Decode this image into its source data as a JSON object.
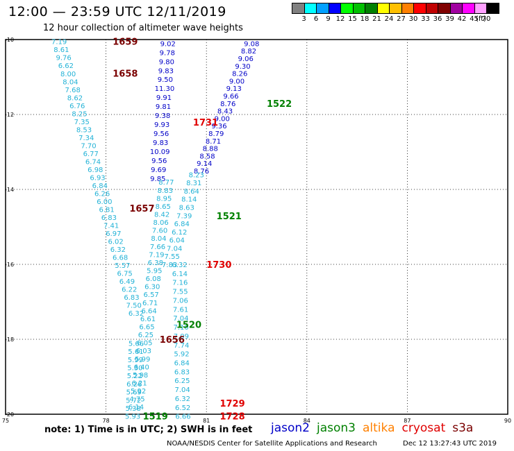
{
  "title": "12:00 — 23:59 UTC 12/11/2019",
  "subtitle": "12 hour collection of altimeter wave heights",
  "legend": {
    "unit_label": "(ft)",
    "items": [
      {
        "label": "3",
        "color": "#808080"
      },
      {
        "label": "6",
        "color": "#00ffff"
      },
      {
        "label": "9",
        "color": "#00a0ff"
      },
      {
        "label": "12",
        "color": "#0000ff"
      },
      {
        "label": "15",
        "color": "#00ff00"
      },
      {
        "label": "18",
        "color": "#00c000"
      },
      {
        "label": "21",
        "color": "#008000"
      },
      {
        "label": "24",
        "color": "#ffff00"
      },
      {
        "label": "27",
        "color": "#ffc000"
      },
      {
        "label": "30",
        "color": "#ff8000"
      },
      {
        "label": "33",
        "color": "#ff0000"
      },
      {
        "label": "36",
        "color": "#c00000"
      },
      {
        "label": "39",
        "color": "#800000"
      },
      {
        "label": "42",
        "color": "#a000a0"
      },
      {
        "label": "45",
        "color": "#ff00ff"
      },
      {
        "label": "70",
        "color": "#ffa0ff"
      },
      {
        "label": "",
        "color": "#000000"
      }
    ]
  },
  "map": {
    "lon_labels": [
      "75",
      "78",
      "81",
      "84",
      "87",
      "90"
    ],
    "lat_labels": [
      "-10",
      "-12",
      "-14",
      "-16",
      "-18",
      "-20"
    ],
    "lon_range": [
      75,
      90
    ],
    "lat_range": [
      -10,
      -20
    ]
  },
  "colors": {
    "cyan_track": "#22b2d6",
    "blue_track": "#0000c8",
    "dark_red_label": "#7a0000",
    "green_label": "#008000",
    "red_label": "#e00000"
  },
  "passes": [
    {
      "label": "1659",
      "color": "dark_red_label",
      "lon": 78.2,
      "lat": -10.05
    },
    {
      "label": "1658",
      "color": "dark_red_label",
      "lon": 78.2,
      "lat": -10.9
    },
    {
      "label": "1657",
      "color": "dark_red_label",
      "lon": 78.7,
      "lat": -14.5
    },
    {
      "label": "1656",
      "color": "dark_red_label",
      "lon": 79.6,
      "lat": -18.0
    },
    {
      "label": "1731",
      "color": "red_label",
      "lon": 80.6,
      "lat": -12.2
    },
    {
      "label": "1730",
      "color": "red_label",
      "lon": 81.0,
      "lat": -16.0
    },
    {
      "label": "1729",
      "color": "red_label",
      "lon": 81.4,
      "lat": -19.7
    },
    {
      "label": "1728",
      "color": "red_label",
      "lon": 81.4,
      "lat": -20.05
    },
    {
      "label": "1522",
      "color": "green_label",
      "lon": 82.8,
      "lat": -11.7
    },
    {
      "label": "1521",
      "color": "green_label",
      "lon": 81.3,
      "lat": -14.7
    },
    {
      "label": "1520",
      "color": "green_label",
      "lon": 80.1,
      "lat": -17.6
    },
    {
      "label": "1519",
      "color": "green_label",
      "lon": 79.1,
      "lat": -20.05
    }
  ],
  "tracks": [
    {
      "name": "jason2-pass-a",
      "color": "blue_track",
      "start": [
        79.85,
        -10.1
      ],
      "end": [
        79.55,
        -13.7
      ],
      "values": [
        "9.02",
        "9.78",
        "9.80",
        "9.83",
        "9.50",
        "11.30",
        "9.91",
        "9.81",
        "9.38",
        "9.93",
        "9.56",
        "9.83",
        "10.09",
        "9.56",
        "9.69",
        "9.85"
      ]
    },
    {
      "name": "jason2-pass-b",
      "color": "blue_track",
      "start": [
        82.35,
        -10.1
      ],
      "end": [
        80.85,
        -13.5
      ],
      "values": [
        "9.08",
        "8.82",
        "9.06",
        "9.30",
        "8.26",
        "9.00",
        "9.13",
        "9.66",
        "8.76",
        "8.43",
        "9.00",
        "9.36",
        "8.79",
        "8.71",
        "8.88",
        "8.58",
        "9.14",
        "8.76"
      ]
    },
    {
      "name": "cyan-pass-left",
      "color": "cyan_track",
      "start": [
        76.6,
        -10.05
      ],
      "end": [
        78.9,
        -17.3
      ],
      "values": [
        "7.19",
        "8.61",
        "9.76",
        "6.62",
        "8.00",
        "8.04",
        "7.68",
        "8.62",
        "6.76",
        "8.25",
        "7.35",
        "8.53",
        "7.34",
        "7.70",
        "6.77",
        "6.74",
        "6.98",
        "6.93",
        "6.84",
        "6.26",
        "6.00",
        "6.81",
        "6.83",
        "7.41",
        "6.97",
        "6.02",
        "6.32",
        "6.68",
        "5.57",
        "6.75",
        "6.49",
        "6.22",
        "6.83",
        "7.50",
        "6.32"
      ]
    },
    {
      "name": "cyan-pass-right-upper",
      "color": "cyan_track",
      "start": [
        80.7,
        -13.6
      ],
      "end": [
        79.9,
        -16.0
      ],
      "values": [
        "8.23",
        "8.31",
        "8.64",
        "8.14",
        "8.63",
        "7.39",
        "6.84",
        "6.12",
        "6.04",
        "7.04",
        "7.55",
        "7.83"
      ]
    },
    {
      "name": "cyan-pass-mid",
      "color": "cyan_track",
      "start": [
        79.8,
        -13.8
      ],
      "end": [
        78.9,
        -19.8
      ],
      "values": [
        "8.77",
        "8.83",
        "8.95",
        "8.65",
        "8.42",
        "8.06",
        "7.60",
        "8.04",
        "7.66",
        "7.19",
        "6.38",
        "5.95",
        "6.08",
        "6.30",
        "6.57",
        "6.71",
        "6.64",
        "6.61",
        "6.65",
        "6.25",
        "6.05",
        "6.03",
        "5.99",
        "6.40",
        "5.98",
        "6.21",
        "5.92",
        "4.75",
        "6.14"
      ]
    },
    {
      "name": "cyan-pass-right-lower",
      "color": "cyan_track",
      "start": [
        80.2,
        -16.0
      ],
      "end": [
        80.3,
        -20.05
      ],
      "values": [
        "6.32",
        "6.14",
        "7.16",
        "7.55",
        "7.06",
        "7.61",
        "7.04",
        "7.10",
        "7.09",
        "7.74",
        "5.92",
        "6.84",
        "6.83",
        "6.25",
        "7.04",
        "6.32",
        "6.52",
        "6.66"
      ]
    },
    {
      "name": "cyan-pass-bottom",
      "color": "cyan_track",
      "start": [
        78.9,
        -18.1
      ],
      "end": [
        78.8,
        -20.05
      ],
      "values": [
        "5.66",
        "5.61",
        "5.99",
        "5.30",
        "5.22",
        "6.26",
        "5.69",
        "5.72",
        "5.38",
        "5.93"
      ]
    }
  ],
  "footer": {
    "note": "note: 1) Time is in UTC; 2) SWH is in feet",
    "satellites": [
      {
        "name": "jason2",
        "color": "#0000c8"
      },
      {
        "name": "jason3",
        "color": "#008000"
      },
      {
        "name": "altika",
        "color": "#ff8000"
      },
      {
        "name": "cryosat",
        "color": "#e00000"
      },
      {
        "name": "s3a",
        "color": "#7a0000"
      }
    ],
    "credit": "NOAA/NESDIS Center for Satellite Applications and Research",
    "timestamp": "Dec 12 13:27:43 UTC 2019"
  }
}
